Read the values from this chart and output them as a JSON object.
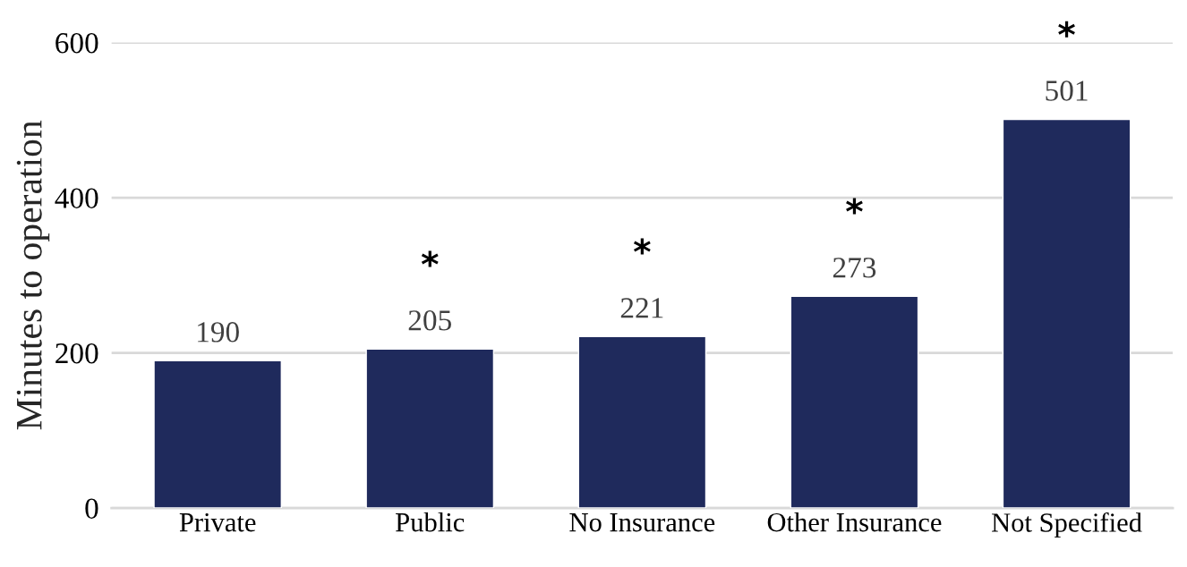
{
  "chart_data": {
    "type": "bar",
    "ylabel": "Minutes to operation",
    "categories": [
      "Private",
      "Public",
      "No Insurance",
      "Other Insurance",
      "Not Specified"
    ],
    "values": [
      190,
      205,
      221,
      273,
      501
    ],
    "color": "#1f2a5c",
    "ylim": [
      0,
      600
    ],
    "yticks": [
      0,
      200,
      400,
      600
    ],
    "grid": "y",
    "data_labels": true,
    "legend": false,
    "annotations": [
      "*",
      "*",
      "*",
      "*"
    ]
  }
}
